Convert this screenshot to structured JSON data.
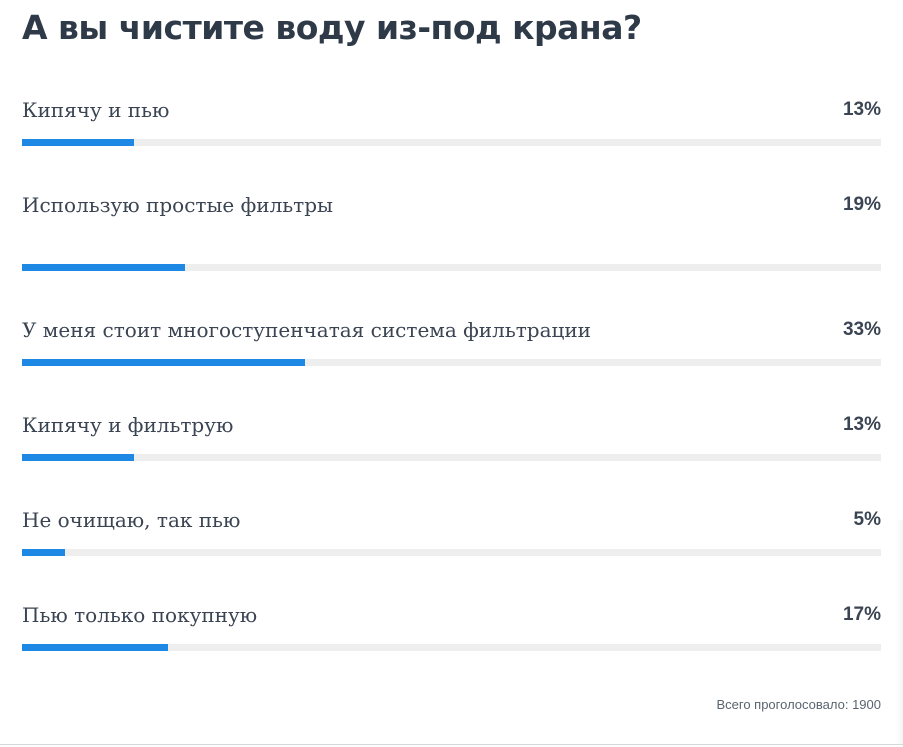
{
  "poll": {
    "title": "А вы чистите воду из-под крана?",
    "accent_color": "#1e88e5",
    "track_color": "#eeeeee",
    "options": [
      {
        "label": "Кипячу и пью",
        "percent_label": "13%",
        "percent": 13
      },
      {
        "label": "Использую простые фильтры",
        "percent_label": "19%",
        "percent": 19
      },
      {
        "label": "У меня стоит многоступенчатая система фильтрации",
        "percent_label": "33%",
        "percent": 33
      },
      {
        "label": "Кипячу и фильтрую",
        "percent_label": "13%",
        "percent": 13
      },
      {
        "label": "Не очищаю, так пью",
        "percent_label": "5%",
        "percent": 5
      },
      {
        "label": "Пью только покупную",
        "percent_label": "17%",
        "percent": 17
      }
    ],
    "total_votes_text": "Всего проголосовало: 1900"
  }
}
